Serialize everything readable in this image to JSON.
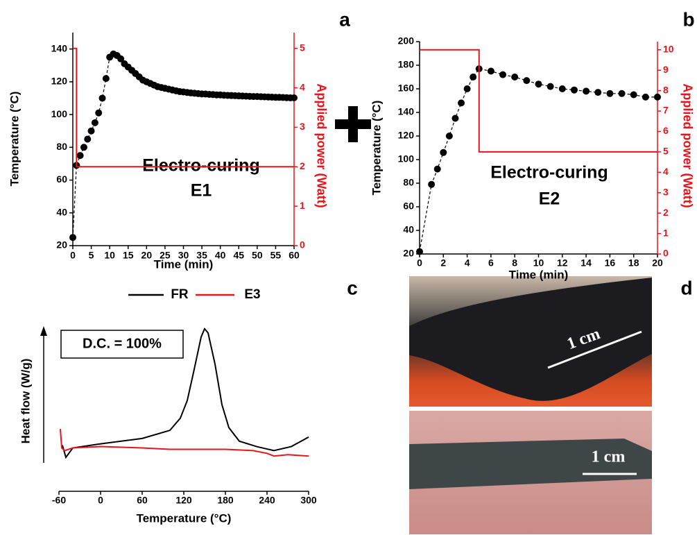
{
  "chart_data": [
    {
      "type": "line",
      "xlabel": "Time (min)",
      "ylabel": "Temperature (°C)",
      "y2label": "Applied power (Watt)",
      "annotations": [
        "Electro-curing",
        "E1"
      ],
      "xlim": [
        0,
        60
      ],
      "xticks": [
        0,
        5,
        10,
        15,
        20,
        25,
        30,
        35,
        40,
        45,
        50,
        55,
        60
      ],
      "ylim": [
        20,
        150
      ],
      "yticks": [
        20,
        40,
        60,
        80,
        100,
        120,
        140
      ],
      "y2lim": [
        0,
        5.4
      ],
      "y2ticks": [
        0,
        1,
        2,
        3,
        4,
        5
      ],
      "series": [
        {
          "color": "#000000",
          "marker": "circle",
          "linestyle": "dashed",
          "x": [
            0,
            1,
            2,
            3,
            4,
            5,
            6,
            7,
            8,
            9,
            10,
            11,
            12,
            13,
            14,
            15,
            16,
            17,
            18,
            19,
            20,
            21,
            22,
            23,
            24,
            25,
            26,
            27,
            28,
            29,
            30,
            31,
            32,
            33,
            34,
            35,
            36,
            37,
            38,
            39,
            40,
            41,
            42,
            43,
            44,
            45,
            46,
            47,
            48,
            49,
            50,
            51,
            52,
            53,
            54,
            55,
            56,
            57,
            58,
            59,
            60
          ],
          "values": [
            25,
            69,
            75,
            80,
            85,
            90,
            95,
            101,
            110,
            122,
            135,
            137,
            136,
            134,
            131,
            129,
            127,
            125,
            123,
            121,
            120,
            119,
            118,
            117,
            116.5,
            116,
            115.5,
            115,
            114.5,
            114,
            113.8,
            113.5,
            113.2,
            113,
            112.8,
            112.6,
            112.5,
            112.3,
            112.2,
            112,
            112,
            111.8,
            111.7,
            111.6,
            111.5,
            111.4,
            111.3,
            111.2,
            111.1,
            111,
            111,
            110.9,
            110.8,
            110.7,
            110.6,
            110.5,
            110.5,
            110.4,
            110.3,
            110.2,
            110.2
          ]
        },
        {
          "color": "#e8141b",
          "axis": "y2",
          "linestyle": "solid",
          "x": [
            0,
            1,
            1,
            60
          ],
          "values": [
            5,
            5,
            2,
            2
          ]
        }
      ]
    },
    {
      "type": "line",
      "xlabel": "Time (min)",
      "ylabel": "Temperature (°C)",
      "y2label": "Applied power (Watt)",
      "annotations": [
        "Electro-curing",
        "E2"
      ],
      "xlim": [
        0,
        20
      ],
      "xticks": [
        0,
        2,
        4,
        6,
        8,
        10,
        12,
        14,
        16,
        18,
        20
      ],
      "ylim": [
        20,
        200
      ],
      "yticks": [
        20,
        40,
        60,
        80,
        100,
        120,
        140,
        160,
        180,
        200
      ],
      "y2lim": [
        0,
        10.4
      ],
      "y2ticks": [
        0,
        1,
        2,
        3,
        4,
        5,
        6,
        7,
        8,
        9,
        10
      ],
      "series": [
        {
          "color": "#000000",
          "marker": "circle",
          "linestyle": "dashed",
          "x": [
            0,
            1,
            1.5,
            2,
            2.5,
            3,
            3.5,
            4,
            4.5,
            5,
            6,
            7,
            8,
            9,
            10,
            11,
            12,
            13,
            14,
            15,
            16,
            17,
            18,
            19,
            20
          ],
          "values": [
            22,
            79,
            92,
            106,
            120,
            135,
            148,
            160,
            170,
            177,
            175,
            172,
            170,
            167,
            164,
            162,
            160,
            159,
            158,
            157,
            156,
            156,
            155,
            153,
            153
          ]
        },
        {
          "color": "#e8141b",
          "axis": "y2",
          "linestyle": "solid",
          "x": [
            0,
            5,
            5,
            20
          ],
          "values": [
            10,
            10,
            5,
            5
          ]
        }
      ]
    },
    {
      "type": "line",
      "xlabel": "Temperature (°C)",
      "ylabel": "Heat flow (W/g)",
      "legend": "top",
      "annotations": [
        "D.C. = 100%"
      ],
      "xlim": [
        -60,
        300
      ],
      "xticks": [
        -60,
        0,
        60,
        120,
        180,
        240,
        300
      ],
      "ylim": [
        0,
        100
      ],
      "series": [
        {
          "name": "FR",
          "color": "#000000",
          "linestyle": "solid",
          "x": [
            -55,
            -50,
            -40,
            0,
            60,
            100,
            115,
            125,
            135,
            145,
            150,
            155,
            165,
            175,
            185,
            200,
            225,
            250,
            275,
            300
          ],
          "values": [
            12,
            3,
            10,
            13,
            17,
            23,
            32,
            45,
            68,
            92,
            98,
            95,
            72,
            42,
            25,
            15,
            11,
            8,
            11,
            18
          ]
        },
        {
          "name": "E3",
          "color": "#e8141b",
          "linestyle": "solid",
          "x": [
            -58,
            -56,
            -52,
            -40,
            0,
            60,
            100,
            140,
            180,
            220,
            240,
            250,
            270,
            300
          ],
          "values": [
            24,
            10,
            8,
            10,
            11,
            10,
            9,
            9,
            9,
            8,
            6,
            4,
            5,
            4
          ]
        }
      ]
    }
  ],
  "figure": {
    "panel_labels": [
      "a",
      "b",
      "c",
      "d"
    ],
    "scale_labels": [
      "1 cm",
      "1 cm"
    ]
  }
}
